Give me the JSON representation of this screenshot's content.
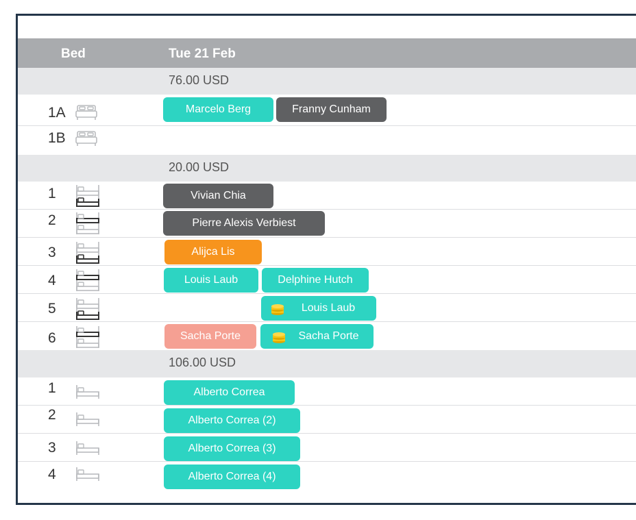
{
  "header": {
    "bed_label": "Bed",
    "date_label": "Tue 21 Feb"
  },
  "icons": {
    "bed_double": "double-bed-icon",
    "bunk": "bunk-bed-icon",
    "single": "single-bed-icon",
    "coin": "coins-icon"
  },
  "colors": {
    "teal": "#2dd4c2",
    "dark": "#5f6062",
    "orange": "#f7941d",
    "salmon": "#f5a093",
    "header": "#a9abae",
    "frame": "#243649"
  },
  "groups": [
    {
      "price": "76.00 USD",
      "beds": [
        {
          "num": "1A",
          "bookings": [
            {
              "name": "Marcelo Berg"
            },
            {
              "name": "Franny Cunham"
            }
          ]
        },
        {
          "num": "1B",
          "bookings": []
        }
      ]
    },
    {
      "price": "20.00 USD",
      "beds": [
        {
          "num": "1",
          "bookings": [
            {
              "name": "Vivian Chia"
            }
          ]
        },
        {
          "num": "2",
          "bookings": [
            {
              "name": "Pierre Alexis Verbiest"
            }
          ]
        },
        {
          "num": "3",
          "bookings": [
            {
              "name": "Alijca Lis"
            }
          ]
        },
        {
          "num": "4",
          "bookings": [
            {
              "name": "Louis Laub"
            },
            {
              "name": "Delphine Hutch"
            }
          ]
        },
        {
          "num": "5",
          "bookings": [
            {
              "name": "Louis Laub"
            }
          ]
        },
        {
          "num": "6",
          "bookings": [
            {
              "name": "Sacha Porte"
            },
            {
              "name": "Sacha Porte"
            }
          ]
        }
      ]
    },
    {
      "price": "106.00 USD",
      "beds": [
        {
          "num": "1",
          "bookings": [
            {
              "name": "Alberto Correa"
            }
          ]
        },
        {
          "num": "2",
          "bookings": [
            {
              "name": "Alberto Correa (2)"
            }
          ]
        },
        {
          "num": "3",
          "bookings": [
            {
              "name": "Alberto Correa (3)"
            }
          ]
        },
        {
          "num": "4",
          "bookings": [
            {
              "name": "Alberto Correa (4)"
            }
          ]
        }
      ]
    }
  ]
}
